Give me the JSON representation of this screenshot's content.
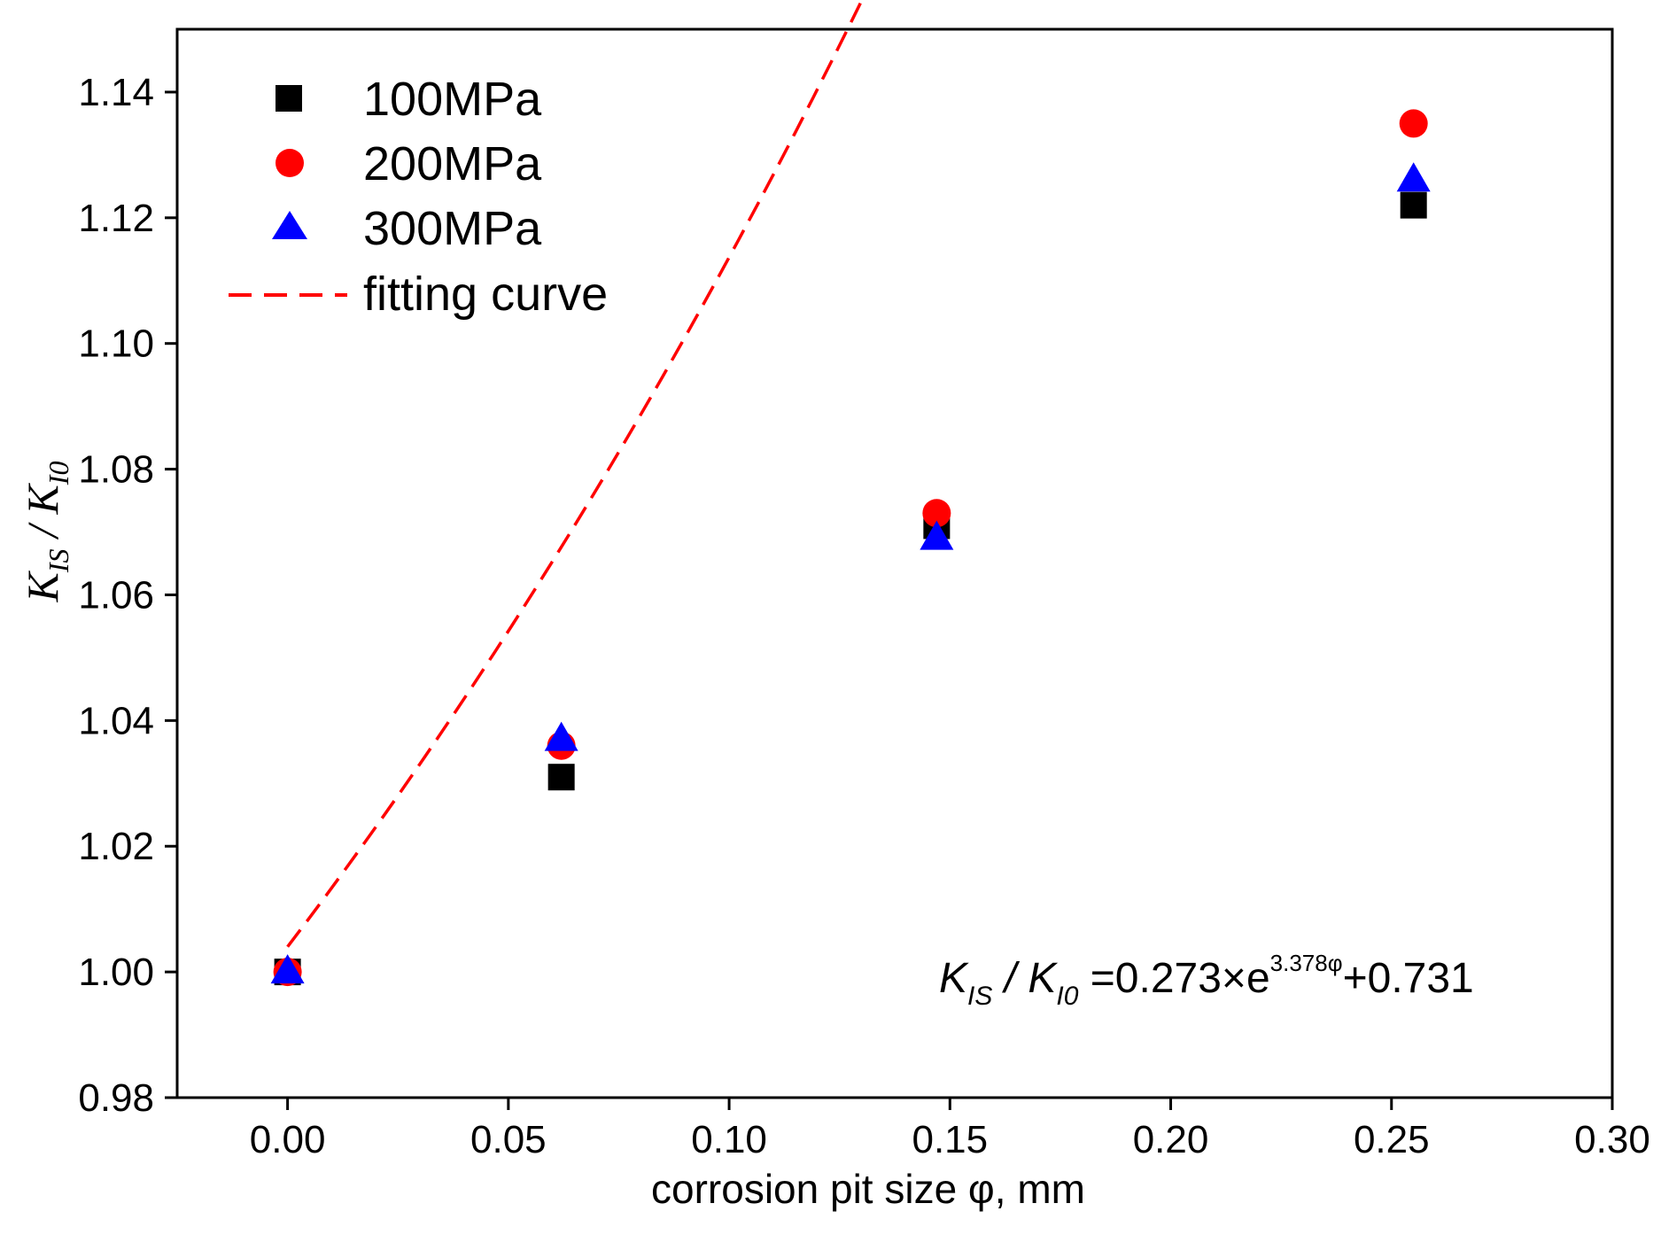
{
  "chart_data": {
    "type": "scatter",
    "title": "",
    "xlabel": "corrosion pit size φ, mm",
    "ylabel": {
      "main": "K",
      "sub1": "IS",
      "sep": " / ",
      "main2": "K",
      "sub2": "I0"
    },
    "xlim": [
      -0.025,
      0.3
    ],
    "ylim": [
      0.98,
      1.15
    ],
    "xticks": [
      "0.00",
      "0.05",
      "0.10",
      "0.15",
      "0.20",
      "0.25",
      "0.30"
    ],
    "xtick_values": [
      0.0,
      0.05,
      0.1,
      0.15,
      0.2,
      0.25,
      0.3
    ],
    "yticks": [
      "0.98",
      "1.00",
      "1.02",
      "1.04",
      "1.06",
      "1.08",
      "1.10",
      "1.12",
      "1.14"
    ],
    "ytick_values": [
      0.98,
      1.0,
      1.02,
      1.04,
      1.06,
      1.08,
      1.1,
      1.12,
      1.14
    ],
    "grid": false,
    "legend_position": "top-left",
    "series": [
      {
        "name": "100MPa",
        "marker": "square",
        "color": "#000000",
        "x": [
          0.0,
          0.062,
          0.147,
          0.255
        ],
        "y": [
          1.0,
          1.031,
          1.071,
          1.122
        ]
      },
      {
        "name": "200MPa",
        "marker": "circle",
        "color": "#ff0000",
        "x": [
          0.0,
          0.062,
          0.147,
          0.255
        ],
        "y": [
          1.0,
          1.036,
          1.073,
          1.135
        ]
      },
      {
        "name": "300MPa",
        "marker": "triangle",
        "color": "#0000ff",
        "x": [
          0.0,
          0.062,
          0.147,
          0.255
        ],
        "y": [
          1.0,
          1.037,
          1.069,
          1.126
        ]
      }
    ],
    "fit": {
      "name": "fitting curve",
      "color": "#ff0000",
      "style": "dashed",
      "a": 0.273,
      "b": 3.378,
      "c": 0.731,
      "x_range": [
        0.0,
        0.255
      ]
    },
    "annotation": {
      "k1": "K",
      "sub1": "IS",
      "sep": " / ",
      "k2": "K",
      "sub2": "I0",
      "rhs": " =0.273×e",
      "exp": "3.378φ",
      "tail": "+0.731"
    }
  }
}
